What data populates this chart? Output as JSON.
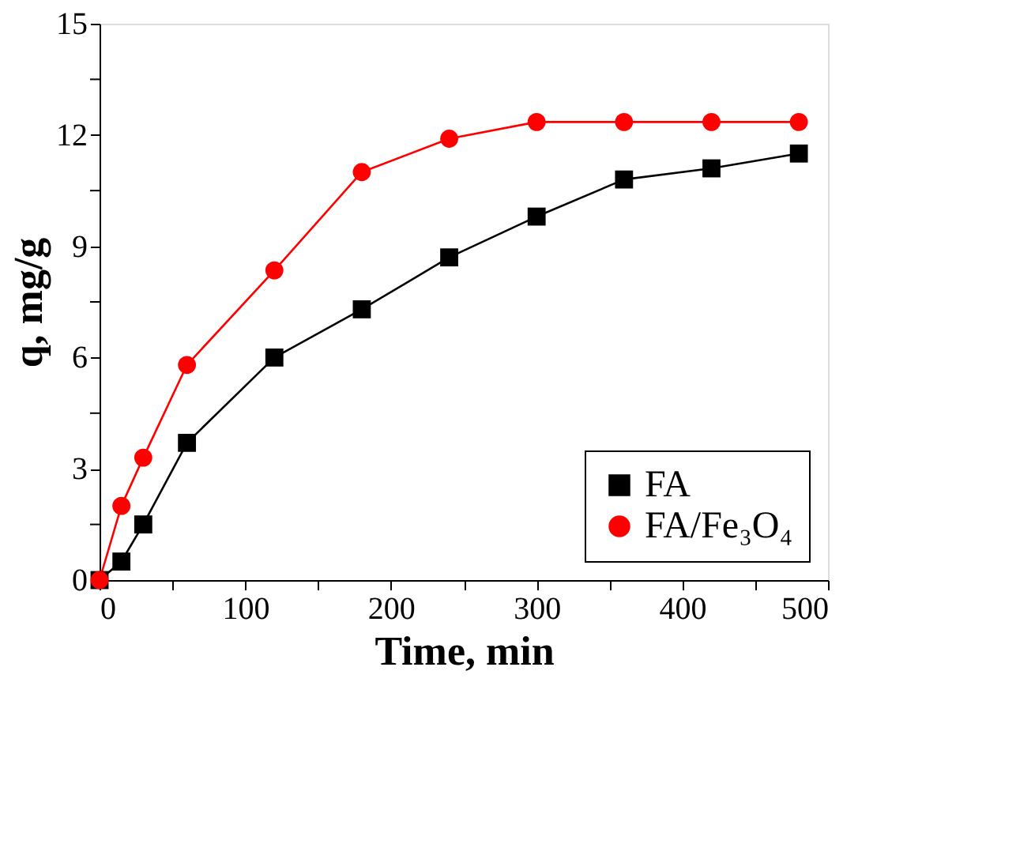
{
  "chart_data": {
    "type": "line",
    "xlabel": "Time, min",
    "ylabel": "q, mg/g",
    "xlim": [
      0,
      500
    ],
    "ylim": [
      0,
      15
    ],
    "xticks": [
      0,
      {
        "value": 50,
        "label": null
      },
      100,
      {
        "value": 150,
        "label": null
      },
      200,
      {
        "value": 250,
        "label": null
      },
      300,
      {
        "value": 350,
        "label": null
      },
      400,
      {
        "value": 450,
        "label": null
      },
      500
    ],
    "yticks": [
      0,
      {
        "value": 1.5,
        "label": null
      },
      3,
      {
        "value": 4.5,
        "label": null
      },
      6,
      {
        "value": 7.5,
        "label": null
      },
      9,
      {
        "value": 10.5,
        "label": null
      },
      12,
      {
        "value": 13.5,
        "label": null
      },
      15
    ],
    "x": [
      0,
      15,
      30,
      60,
      120,
      180,
      240,
      300,
      360,
      420,
      480
    ],
    "series": [
      {
        "name": "FA",
        "color": "#000000",
        "marker": "square",
        "values": [
          0,
          0.5,
          1.5,
          3.7,
          6.0,
          7.3,
          8.7,
          9.8,
          10.8,
          11.1,
          11.5
        ]
      },
      {
        "name": "FA/Fe₃O₄",
        "color": "#ff0000",
        "marker": "circle",
        "values": [
          0,
          2.0,
          3.3,
          5.8,
          8.35,
          11.0,
          11.9,
          12.35,
          12.35,
          12.35,
          12.35
        ]
      }
    ],
    "legend": "bottom right",
    "grid": false
  }
}
